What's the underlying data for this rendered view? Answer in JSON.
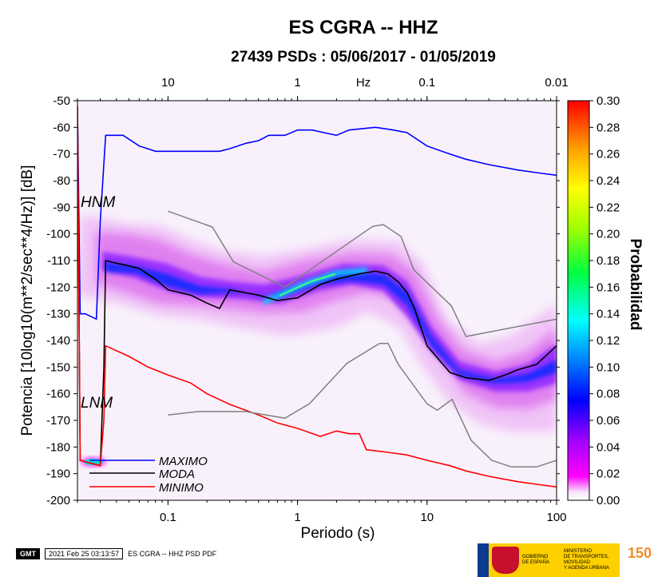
{
  "chart_data": {
    "type": "heatmap",
    "title": "ES CGRA -- HHZ",
    "subtitle": "27439 PSDs : 05/06/2017 - 01/05/2019",
    "xlabel": "Periodo (s)",
    "ylabel": "Potencia [10log10(m**2/sec**4/Hz)] [dB]",
    "top_axis_label": "Hz",
    "x_scale": "log",
    "xlim": [
      0.02,
      100
    ],
    "ylim": [
      -200,
      -50
    ],
    "x_ticks": [
      "0.1",
      "1",
      "10",
      "100"
    ],
    "top_ticks": [
      "10",
      "1",
      "0.1",
      "0.01"
    ],
    "y_ticks": [
      "-50",
      "-60",
      "-70",
      "-80",
      "-90",
      "-100",
      "-110",
      "-120",
      "-130",
      "-140",
      "-150",
      "-160",
      "-170",
      "-180",
      "-190",
      "-200"
    ],
    "colorbar": {
      "label": "Probabilidad",
      "range": [
        0.0,
        0.3
      ],
      "ticks": [
        "0.30",
        "0.28",
        "0.26",
        "0.24",
        "0.22",
        "0.20",
        "0.18",
        "0.16",
        "0.14",
        "0.12",
        "0.10",
        "0.08",
        "0.06",
        "0.04",
        "0.02",
        "0.00"
      ]
    },
    "annotations": [
      {
        "text": "HNM",
        "x": 0.022,
        "y": -91
      },
      {
        "text": "LNM",
        "x": 0.022,
        "y": -173
      }
    ],
    "legend": {
      "placement": "bottom-left",
      "entries": [
        {
          "label": "MAXIMO",
          "color": "#0000ff"
        },
        {
          "label": "MODA",
          "color": "#000000"
        },
        {
          "label": "MINIMO",
          "color": "#ff0000"
        }
      ]
    },
    "series": [
      {
        "name": "MAXIMO",
        "color": "#0000ff",
        "x": [
          0.02,
          0.021,
          0.023,
          0.028,
          0.03,
          0.033,
          0.045,
          0.06,
          0.08,
          0.1,
          0.15,
          0.25,
          0.3,
          0.4,
          0.5,
          0.6,
          0.8,
          1.0,
          1.3,
          1.6,
          2.0,
          2.5,
          4.0,
          5.5,
          7.0,
          10,
          15,
          20,
          30,
          50,
          70,
          100
        ],
        "y": [
          -52,
          -130,
          -130,
          -132,
          -95,
          -63,
          -63,
          -67,
          -69,
          -69,
          -69,
          -69,
          -68,
          -66,
          -65,
          -63,
          -63,
          -61,
          -61,
          -62,
          -63,
          -61,
          -60,
          -61,
          -62,
          -67,
          -70,
          -72,
          -74,
          -76,
          -77,
          -78
        ]
      },
      {
        "name": "MODA",
        "color": "#000000",
        "x": [
          0.02,
          0.021,
          0.025,
          0.03,
          0.032,
          0.033,
          0.04,
          0.05,
          0.06,
          0.08,
          0.1,
          0.15,
          0.2,
          0.25,
          0.3,
          0.5,
          0.7,
          1.0,
          1.5,
          2.0,
          3.0,
          4.0,
          5.0,
          6.0,
          7.0,
          8.0,
          10,
          15,
          20,
          30,
          40,
          50,
          70,
          100
        ],
        "y": [
          -52,
          -185,
          -186,
          -187,
          -150,
          -110,
          -111,
          -112,
          -113,
          -117,
          -121,
          -123,
          -126,
          -128,
          -121,
          -123,
          -125,
          -124,
          -119,
          -117,
          -115,
          -114,
          -115,
          -118,
          -122,
          -128,
          -142,
          -152,
          -154,
          -155,
          -153,
          -151,
          -149,
          -142
        ]
      },
      {
        "name": "MINIMO",
        "color": "#ff0000",
        "x": [
          0.02,
          0.021,
          0.025,
          0.03,
          0.032,
          0.033,
          0.05,
          0.07,
          0.1,
          0.15,
          0.2,
          0.3,
          0.5,
          0.7,
          1.0,
          1.5,
          2.0,
          2.5,
          3.0,
          3.4,
          5.0,
          7.0,
          10,
          15,
          20,
          30,
          50,
          70,
          100
        ],
        "y": [
          -52,
          -185,
          -186,
          -187,
          -170,
          -142,
          -146,
          -150,
          -153,
          -156,
          -160,
          -164,
          -168,
          -171,
          -173,
          -176,
          -174,
          -175,
          -175,
          -181,
          -182,
          -183,
          -185,
          -187,
          -189,
          -191,
          -193,
          -194,
          -195
        ]
      },
      {
        "name": "HNM",
        "color": "#808080",
        "x": [
          0.1,
          0.22,
          0.32,
          0.8,
          3.8,
          4.6,
          6.3,
          7.9,
          15.4,
          20,
          100
        ],
        "y": [
          -91.5,
          -97.4,
          -110.5,
          -120.0,
          -97.2,
          -96.5,
          -101.0,
          -113.5,
          -127.0,
          -138.5,
          -132.0
        ]
      },
      {
        "name": "LNM",
        "color": "#808080",
        "x": [
          0.1,
          0.17,
          0.4,
          0.8,
          1.24,
          2.4,
          4.3,
          5.0,
          6.0,
          10,
          12,
          15.6,
          21.9,
          31.6,
          45,
          70,
          100
        ],
        "y": [
          -168.0,
          -166.7,
          -166.7,
          -169.2,
          -163.7,
          -148.6,
          -141.1,
          -141.1,
          -149.0,
          -163.8,
          -166.2,
          -162.1,
          -177.5,
          -185.0,
          -187.5,
          -187.5,
          -185.0
        ]
      }
    ]
  }
}
